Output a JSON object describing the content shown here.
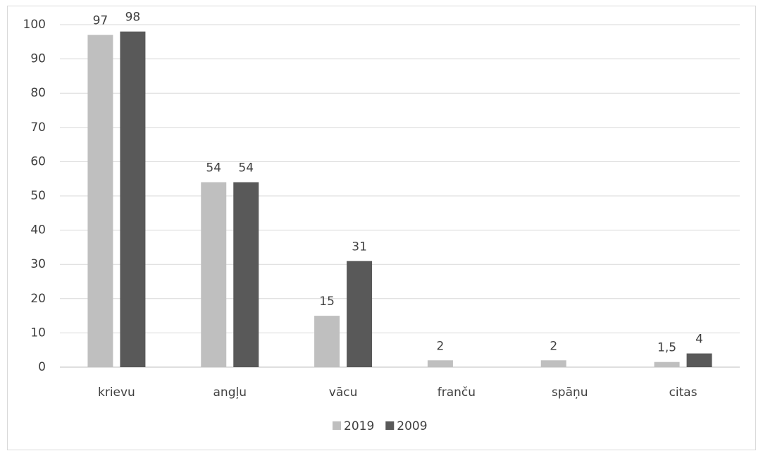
{
  "chart_data": {
    "type": "bar",
    "categories": [
      "krievu",
      "angļu",
      "vācu",
      "franču",
      "spāņu",
      "citas"
    ],
    "series": [
      {
        "name": "2019",
        "color": "#bfbfbf",
        "values": [
          97,
          54,
          15,
          2,
          2,
          1.5
        ],
        "value_labels": [
          "97",
          "54",
          "15",
          "2",
          "2",
          "1,5"
        ]
      },
      {
        "name": "2009",
        "color": "#595959",
        "values": [
          98,
          54,
          31,
          null,
          null,
          4
        ]
      }
    ],
    "ylim": [
      0,
      100
    ],
    "yticks": [
      0,
      10,
      20,
      30,
      40,
      50,
      60,
      70,
      80,
      90,
      100
    ],
    "grid": true,
    "legend": "bottom"
  }
}
